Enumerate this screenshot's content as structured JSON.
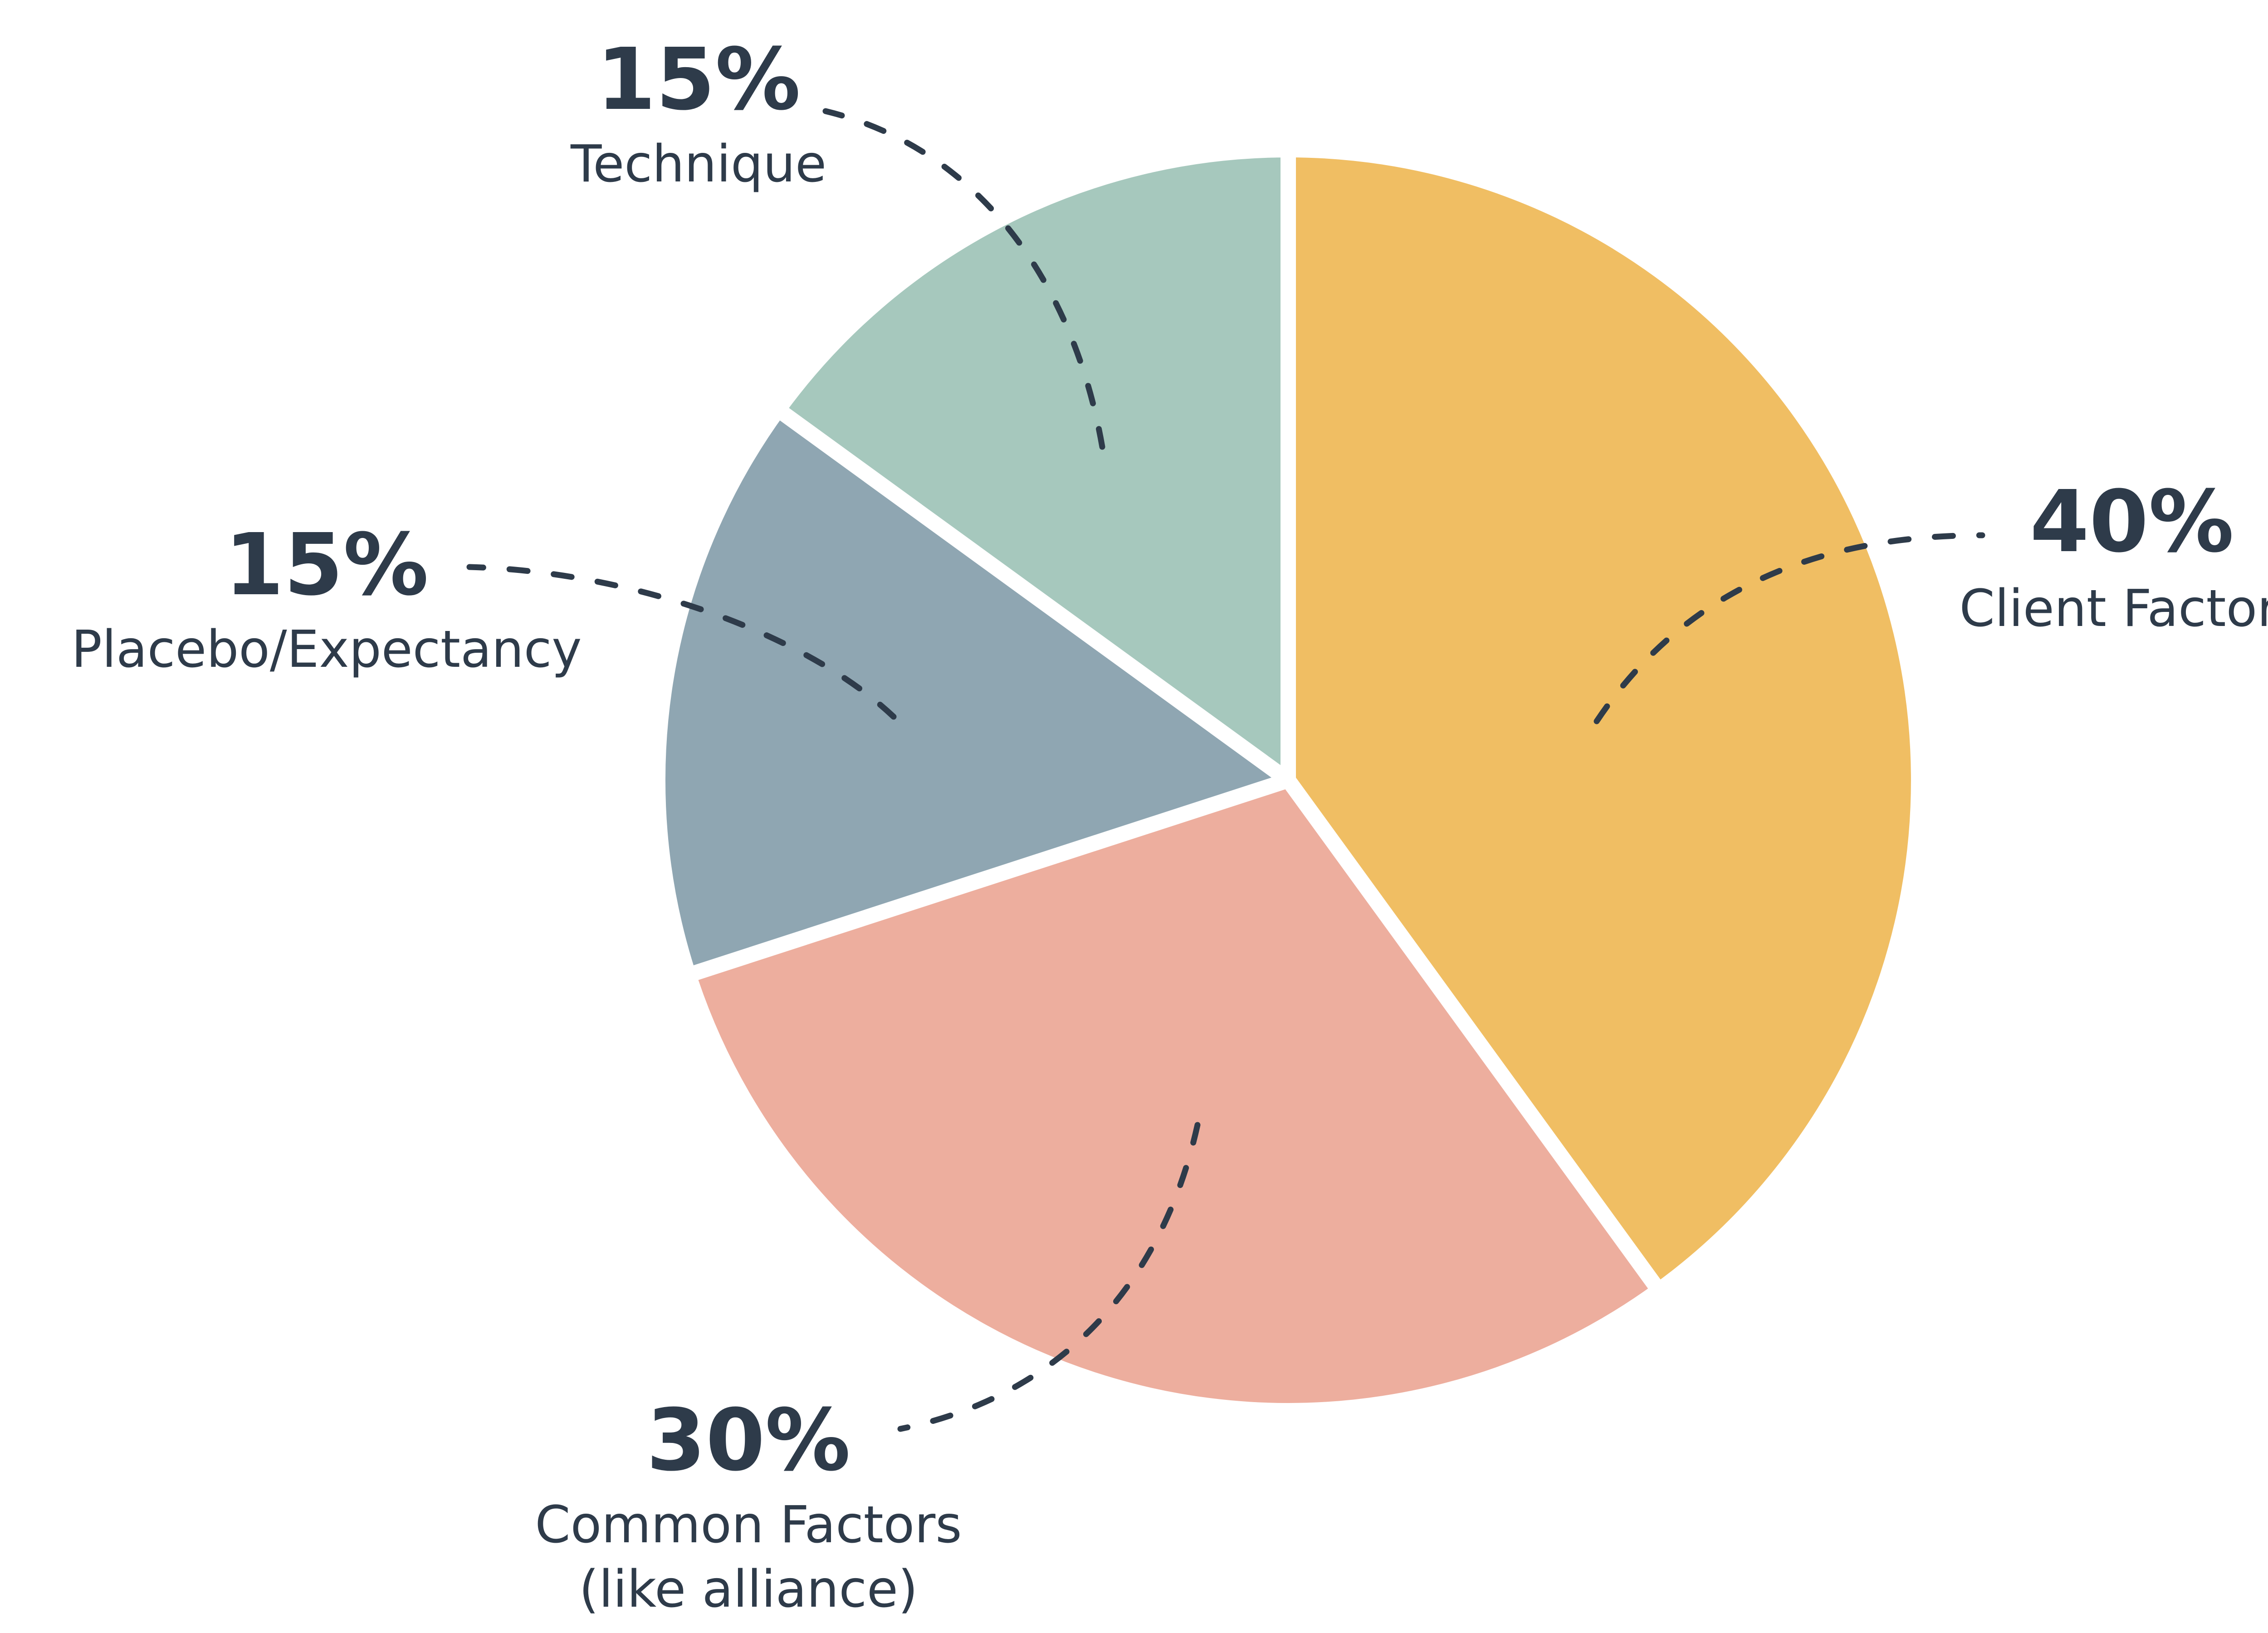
{
  "chart_data": {
    "type": "pie",
    "start_angle_deg": 0,
    "direction": "clockwise",
    "colors": {
      "text": "#2e3b4a",
      "background": "#ffffff"
    },
    "slices": [
      {
        "label": "Client Factors",
        "label_lines": [
          "Client Factors"
        ],
        "value": 40,
        "percent_label": "40%",
        "color": "#f0be63",
        "label_side": "right"
      },
      {
        "label": "Common Factors (like alliance)",
        "label_lines": [
          "Common Factors",
          "(like alliance)"
        ],
        "value": 30,
        "percent_label": "30%",
        "color": "#edae9e",
        "label_side": "bottom-left"
      },
      {
        "label": "Placebo/Expectancy",
        "label_lines": [
          "Placebo/Expectancy"
        ],
        "value": 15,
        "percent_label": "15%",
        "color": "#8fa6b2",
        "label_side": "left"
      },
      {
        "label": "Technique",
        "label_lines": [
          "Technique"
        ],
        "value": 15,
        "percent_label": "15%",
        "color": "#a6c8bd",
        "label_side": "top-left"
      }
    ]
  }
}
